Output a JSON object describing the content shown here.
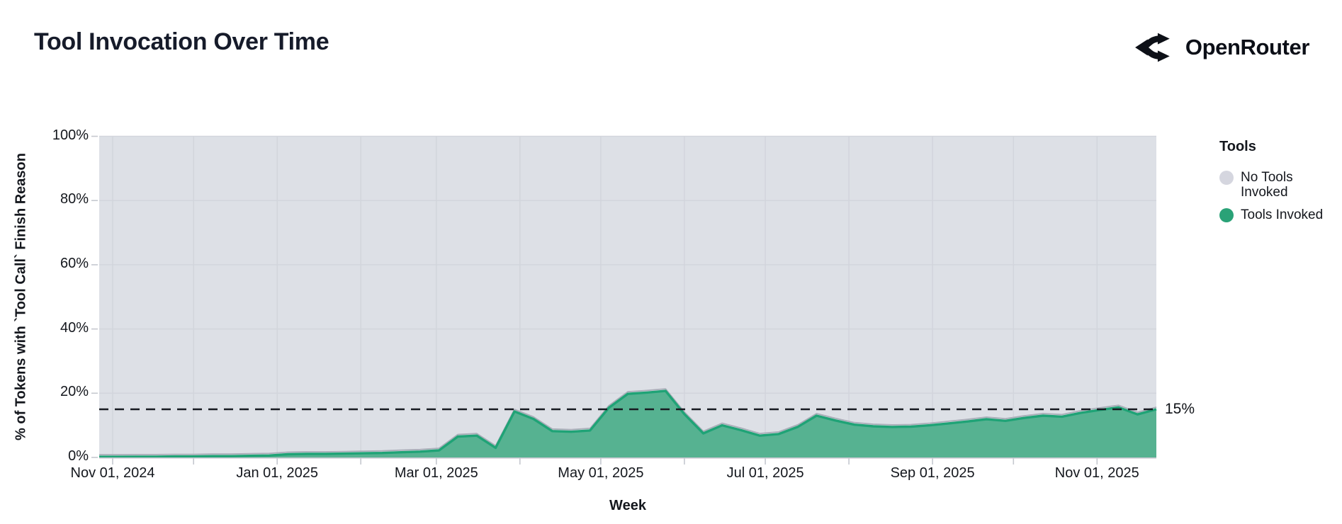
{
  "header": {
    "title": "Tool Invocation Over Time",
    "brand": "OpenRouter"
  },
  "colors": {
    "page_bg": "#ffffff",
    "title_text": "#161b2a",
    "tick_text": "#14171d",
    "plot_bg": "#dde0e6",
    "gridline": "#d2d5dc",
    "axis_line": "#c5c8cf",
    "area_fill": "#56b291",
    "area_stroke": "#1fa376",
    "area_shadow": "#a9adb8",
    "dashed_line": "#171a21",
    "no_tools_swatch": "#d5d6df",
    "tools_swatch": "#2aa277",
    "logo_mark": "#0d1017"
  },
  "legend": {
    "title": "Tools",
    "items": [
      {
        "label": "No Tools Invoked",
        "color": "#d5d6df"
      },
      {
        "label": "Tools Invoked",
        "color": "#2aa277"
      }
    ]
  },
  "chart_data": {
    "type": "area",
    "stacked": true,
    "stack_total": 100,
    "title": "Tool Invocation Over Time",
    "xlabel": "Week",
    "ylabel": "% of Tokens with `Tool Call` Finish Reason",
    "ylim": [
      0,
      100
    ],
    "grid": true,
    "legend_position": "right",
    "x_start": "2024-10-27",
    "x_step_days": 7,
    "x_end": "2025-11-23",
    "x_ticks": [
      {
        "date": "2024-11-01",
        "label": "Nov 01, 2024"
      },
      {
        "date": "2024-12-01",
        "label": null
      },
      {
        "date": "2025-01-01",
        "label": "Jan 01, 2025"
      },
      {
        "date": "2025-02-01",
        "label": null
      },
      {
        "date": "2025-03-01",
        "label": "Mar 01, 2025"
      },
      {
        "date": "2025-04-01",
        "label": null
      },
      {
        "date": "2025-05-01",
        "label": "May 01, 2025"
      },
      {
        "date": "2025-06-01",
        "label": null
      },
      {
        "date": "2025-07-01",
        "label": "Jul 01, 2025"
      },
      {
        "date": "2025-08-01",
        "label": null
      },
      {
        "date": "2025-09-01",
        "label": "Sep 01, 2025"
      },
      {
        "date": "2025-10-01",
        "label": null
      },
      {
        "date": "2025-11-01",
        "label": "Nov 01, 2025"
      }
    ],
    "y_ticks": [
      {
        "value": 0,
        "label": "0%"
      },
      {
        "value": 20,
        "label": "20%"
      },
      {
        "value": 40,
        "label": "40%"
      },
      {
        "value": 60,
        "label": "60%"
      },
      {
        "value": 80,
        "label": "80%"
      },
      {
        "value": 100,
        "label": "100%"
      }
    ],
    "series": [
      {
        "name": "Tools Invoked",
        "color": "#56b291",
        "values": [
          0.2,
          0.2,
          0.25,
          0.25,
          0.3,
          0.3,
          0.4,
          0.4,
          0.5,
          0.6,
          1.0,
          1.1,
          1.1,
          1.2,
          1.3,
          1.4,
          1.6,
          1.8,
          2.2,
          6.5,
          6.8,
          3.0,
          14.3,
          12.0,
          8.2,
          8.0,
          8.4,
          15.5,
          19.8,
          20.2,
          20.7,
          13.5,
          7.5,
          10.0,
          8.5,
          6.8,
          7.3,
          9.5,
          13.0,
          11.5,
          10.2,
          9.7,
          9.5,
          9.6,
          10.0,
          10.6,
          11.2,
          11.9,
          11.4,
          12.3,
          13.0,
          12.7,
          13.9,
          14.8,
          15.6,
          13.4,
          15.0
        ]
      },
      {
        "name": "No Tools Invoked",
        "color": "#d5d6df",
        "complement_of": "Tools Invoked",
        "note": "fills remainder of stack up to 100%"
      }
    ],
    "reference_line": {
      "value": 15,
      "label": "15%",
      "style": "dashed"
    }
  }
}
